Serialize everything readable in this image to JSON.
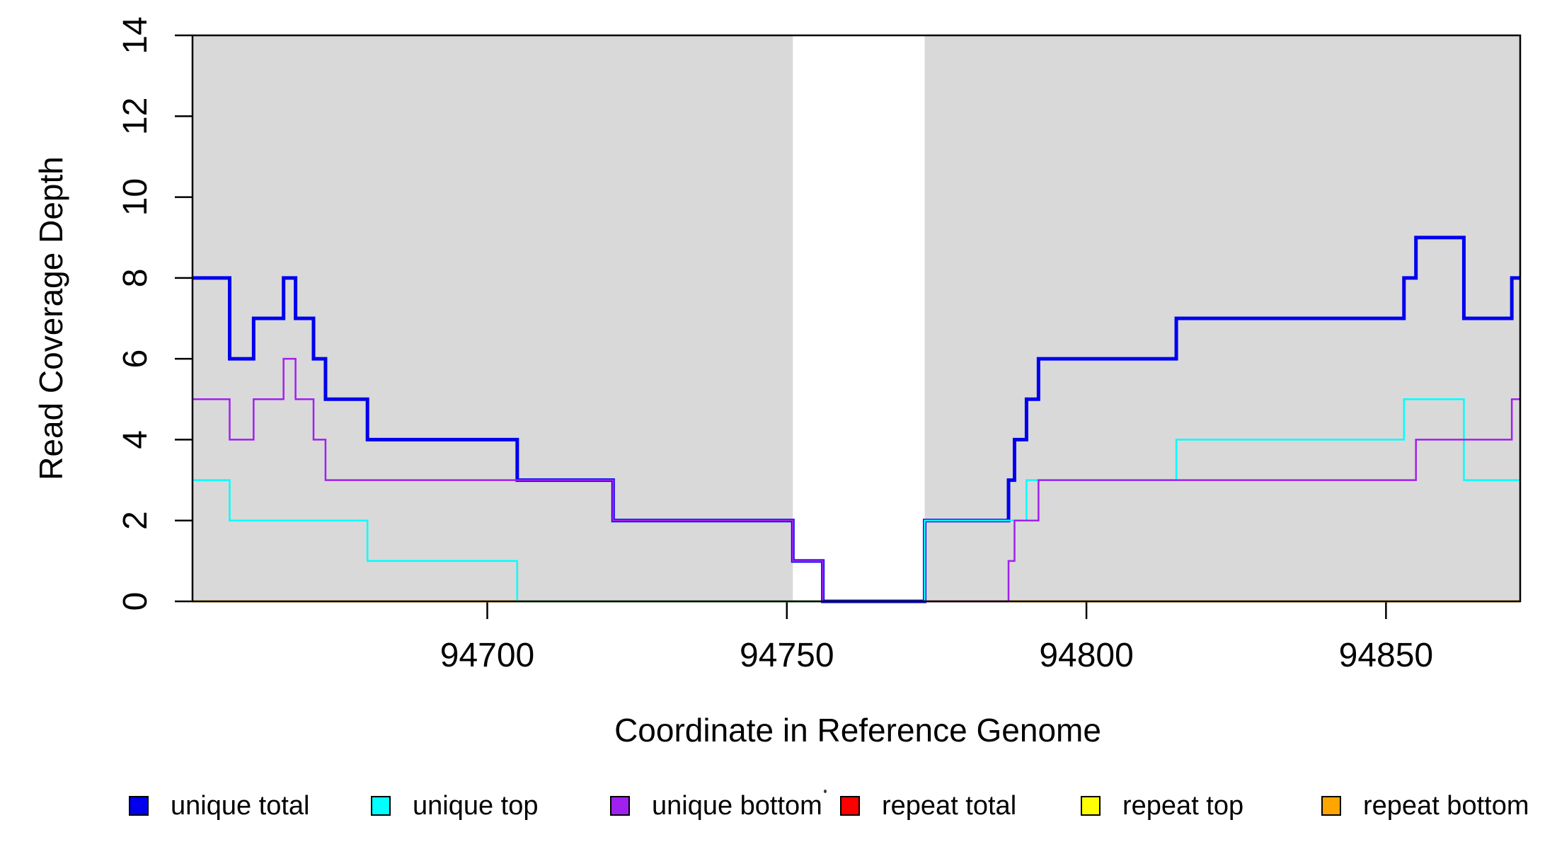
{
  "chart_data": {
    "type": "line",
    "subtype": "step",
    "title": "",
    "xlabel": "Coordinate in Reference Genome",
    "ylabel": "Read Coverage Depth",
    "xlim": [
      94650.8,
      94872.4
    ],
    "ylim": [
      0,
      14
    ],
    "x_ticks": [
      94700,
      94750,
      94800,
      94850
    ],
    "y_ticks": [
      0,
      2,
      4,
      6,
      8,
      10,
      12,
      14
    ],
    "grid": false,
    "background_color": "#ffffff",
    "shaded_regions": [
      {
        "name": "unique-region-left",
        "start": 94650.8,
        "end": 94751,
        "color": "#D9D9D9"
      },
      {
        "name": "unique-region-right",
        "start": 94773,
        "end": 94872.4,
        "color": "#D9D9D9"
      }
    ],
    "series": [
      {
        "name": "unique total",
        "color": "#0000EE",
        "width": 5,
        "steps": [
          [
            94650.8,
            8
          ],
          [
            94657,
            6
          ],
          [
            94661,
            7
          ],
          [
            94666,
            8
          ],
          [
            94668,
            7
          ],
          [
            94671,
            6
          ],
          [
            94673,
            5
          ],
          [
            94680,
            4
          ],
          [
            94705,
            3
          ],
          [
            94721,
            2
          ],
          [
            94751,
            1
          ],
          [
            94756,
            0
          ],
          [
            94773,
            2
          ],
          [
            94787,
            3
          ],
          [
            94788,
            4
          ],
          [
            94790,
            5
          ],
          [
            94792,
            6
          ],
          [
            94815,
            7
          ],
          [
            94853,
            8
          ],
          [
            94855,
            9
          ],
          [
            94863,
            7
          ],
          [
            94871,
            8
          ]
        ]
      },
      {
        "name": "unique top",
        "color": "#00FFFF",
        "width": 2.5,
        "steps": [
          [
            94650.8,
            3
          ],
          [
            94657,
            2
          ],
          [
            94680,
            1
          ],
          [
            94705,
            0
          ],
          [
            94773,
            2
          ],
          [
            94790,
            3
          ],
          [
            94815,
            4
          ],
          [
            94853,
            5
          ],
          [
            94863,
            3
          ]
        ]
      },
      {
        "name": "unique bottom",
        "color": "#A020F0",
        "width": 2.5,
        "steps": [
          [
            94650.8,
            5
          ],
          [
            94657,
            4
          ],
          [
            94661,
            5
          ],
          [
            94666,
            6
          ],
          [
            94668,
            5
          ],
          [
            94671,
            4
          ],
          [
            94673,
            3
          ],
          [
            94721,
            2
          ],
          [
            94751,
            1
          ],
          [
            94756,
            0
          ],
          [
            94787,
            1
          ],
          [
            94788,
            2
          ],
          [
            94792,
            3
          ],
          [
            94855,
            4
          ],
          [
            94871,
            5
          ]
        ]
      },
      {
        "name": "repeat total",
        "color": "#FF0000",
        "width": 2.5,
        "steps": [
          [
            94650.8,
            0
          ]
        ]
      },
      {
        "name": "repeat top",
        "color": "#FFFF00",
        "width": 2.5,
        "steps": [
          [
            94650.8,
            0
          ]
        ]
      },
      {
        "name": "repeat bottom",
        "color": "#FFA500",
        "width": 3,
        "steps": [
          [
            94650.8,
            0
          ]
        ]
      }
    ],
    "draw_order": [
      "repeat total",
      "repeat top",
      "repeat bottom",
      "unique total",
      "unique top",
      "unique bottom"
    ],
    "legend": {
      "position": "bottom",
      "items": [
        {
          "label": "unique total",
          "color": "#0000EE"
        },
        {
          "label": "unique top",
          "color": "#00FFFF"
        },
        {
          "label": "unique bottom",
          "color": "#A020F0"
        },
        {
          "label": "repeat total",
          "color": "#FF0000"
        },
        {
          "label": "repeat top",
          "color": "#FFFF00"
        },
        {
          "label": "repeat bottom",
          "color": "#FFA500"
        }
      ]
    }
  }
}
